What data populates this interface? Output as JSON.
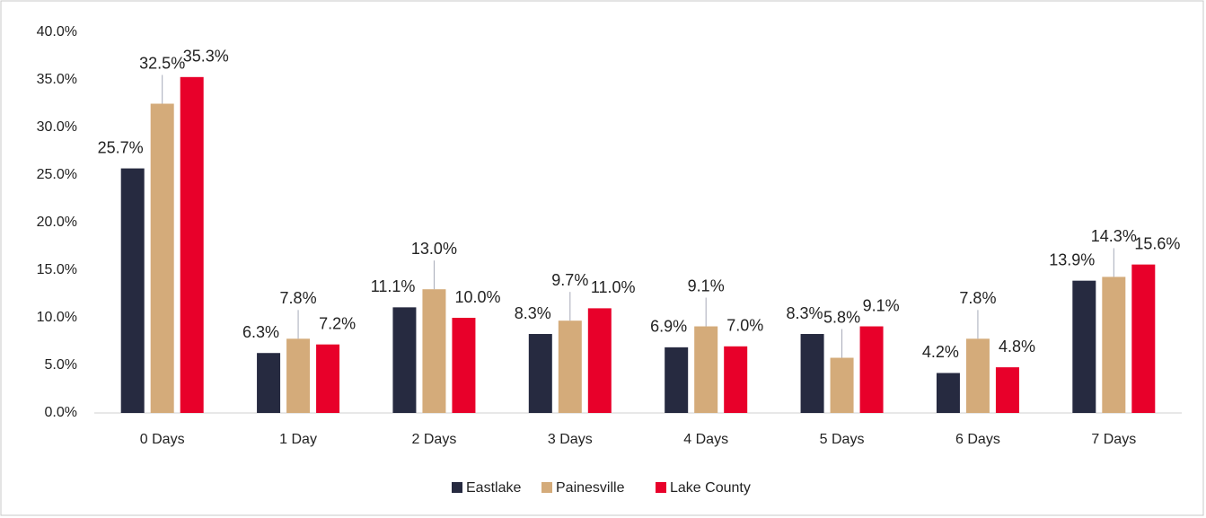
{
  "chart_data": {
    "type": "bar",
    "categories": [
      "0 Days",
      "1 Day",
      "2 Days",
      "3 Days",
      "4 Days",
      "5 Days",
      "6 Days",
      "7 Days"
    ],
    "series": [
      {
        "name": "Eastlake",
        "color": "#262a40",
        "values": [
          25.7,
          6.3,
          11.1,
          8.3,
          6.9,
          8.3,
          4.2,
          13.9
        ],
        "value_labels": [
          "25.7%",
          "6.3%",
          "11.1%",
          "8.3%",
          "6.9%",
          "8.3%",
          "4.2%",
          "13.9%"
        ]
      },
      {
        "name": "Painesville",
        "color": "#d4ab7a",
        "values": [
          32.5,
          7.8,
          13.0,
          9.7,
          9.1,
          5.8,
          7.8,
          14.3
        ],
        "value_labels": [
          "32.5%",
          "7.8%",
          "13.0%",
          "9.7%",
          "9.1%",
          "5.8%",
          "7.8%",
          "14.3%"
        ]
      },
      {
        "name": "Lake County",
        "color": "#e8002a",
        "values": [
          35.3,
          7.2,
          10.0,
          11.0,
          7.0,
          9.1,
          4.8,
          15.6
        ],
        "value_labels": [
          "35.3%",
          "7.2%",
          "10.0%",
          "11.0%",
          "7.0%",
          "9.1%",
          "4.8%",
          "15.6%"
        ]
      }
    ],
    "ylim": [
      0,
      40
    ],
    "yticks": [
      {
        "value": 0,
        "label": "0.0%"
      },
      {
        "value": 5,
        "label": "5.0%"
      },
      {
        "value": 10,
        "label": "10.0%"
      },
      {
        "value": 15,
        "label": "15.0%"
      },
      {
        "value": 20,
        "label": "20.0%"
      },
      {
        "value": 25,
        "label": "25.0%"
      },
      {
        "value": 30,
        "label": "30.0%"
      },
      {
        "value": 35,
        "label": "35.0%"
      },
      {
        "value": 40,
        "label": "40.0%"
      }
    ],
    "grid": false,
    "legend": "bottom"
  }
}
